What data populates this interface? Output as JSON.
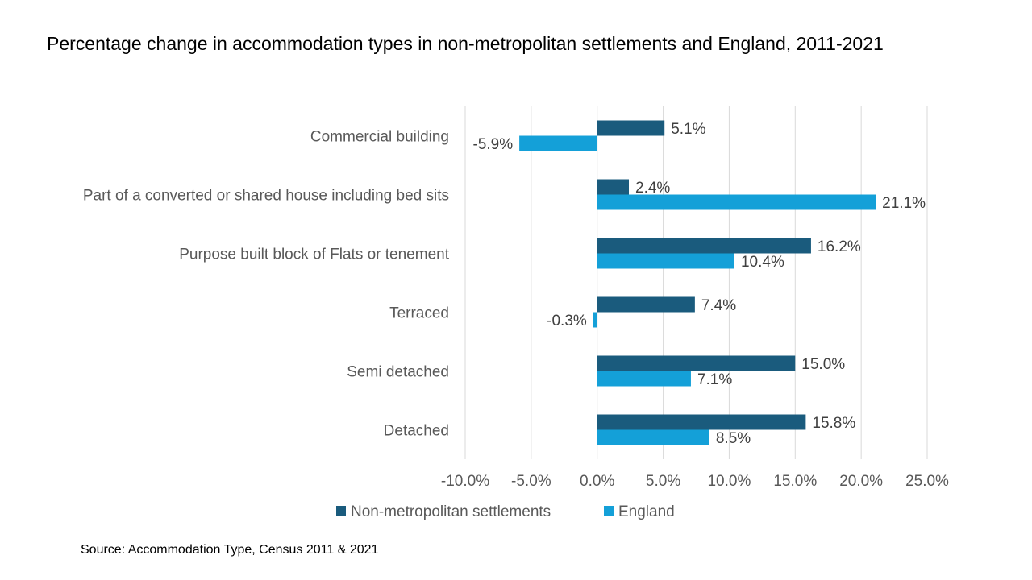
{
  "colors": {
    "non_metropolitan": "#1a5b7d",
    "england": "#14a0d8",
    "gridline": "#d9d9d9",
    "text": "#595959"
  },
  "chart_data": {
    "type": "bar",
    "orientation": "horizontal",
    "title": "Percentage change in accommodation types in non-metropolitan settlements and England, 2011-2021",
    "categories": [
      "Commercial building",
      "Part of a converted or shared house including bed sits",
      "Purpose built block of Flats or tenement",
      "Terraced",
      "Semi detached",
      "Detached"
    ],
    "series": [
      {
        "name": "Non-metropolitan settlements",
        "values": [
          5.1,
          2.4,
          16.2,
          7.4,
          15.0,
          15.8
        ],
        "labels": [
          "5.1%",
          "2.4%",
          "16.2%",
          "7.4%",
          "15.0%",
          "15.8%"
        ]
      },
      {
        "name": "England",
        "values": [
          -5.9,
          21.1,
          10.4,
          -0.3,
          7.1,
          8.5
        ],
        "labels": [
          "-5.9%",
          "21.1%",
          "10.4%",
          "-0.3%",
          "7.1%",
          "8.5%"
        ]
      }
    ],
    "xlim": [
      -10,
      25
    ],
    "xticks": [
      -10,
      -5,
      0,
      5,
      10,
      15,
      20,
      25
    ],
    "xtick_labels": [
      "-10.0%",
      "-5.0%",
      "0.0%",
      "5.0%",
      "10.0%",
      "15.0%",
      "20.0%",
      "25.0%"
    ],
    "xlabel": "",
    "ylabel": "",
    "grid": "vertical",
    "legend": "bottom"
  },
  "source": "Source: Accommodation Type, Census 2011 & 2021"
}
